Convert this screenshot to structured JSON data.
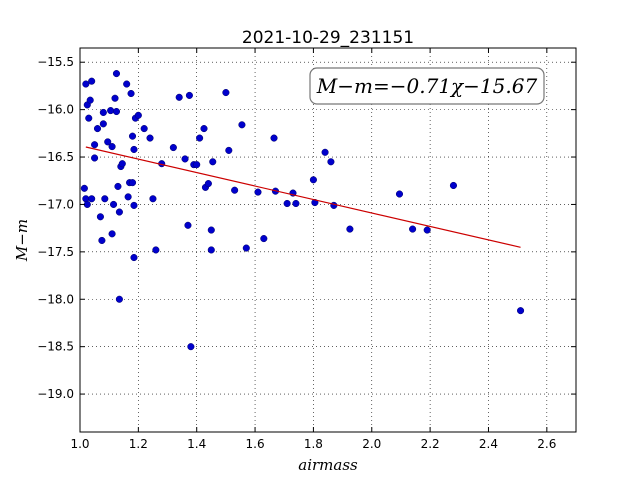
{
  "chart_data": {
    "type": "scatter",
    "title": "2021-10-29_231151",
    "xlabel": "airmass",
    "ylabel": "M−m",
    "xlim": [
      1.0,
      2.7
    ],
    "ylim": [
      -19.4,
      -15.35
    ],
    "y_inverted": true,
    "grid": true,
    "grid_style": "dotted",
    "x_ticks": [
      1.0,
      1.2,
      1.4,
      1.6,
      1.8,
      2.0,
      2.2,
      2.4,
      2.6
    ],
    "x_tick_labels": [
      "1.0",
      "1.2",
      "1.4",
      "1.6",
      "1.8",
      "2.0",
      "2.2",
      "2.4",
      "2.6"
    ],
    "y_ticks": [
      -15.5,
      -16.0,
      -16.5,
      -17.0,
      -17.5,
      -18.0,
      -18.5,
      -19.0
    ],
    "y_tick_labels": [
      "−15.5",
      "−16.0",
      "−16.5",
      "−17.0",
      "−17.5",
      "−18.0",
      "−18.5",
      "−19.0"
    ],
    "annotation": "M−m=−0.71χ−15.67",
    "annotation_position": "top-right",
    "colors": {
      "points": "#0000cc",
      "fit_line": "#cc0000"
    },
    "fit_line": {
      "slope": -0.71,
      "intercept": -15.67,
      "x_range": [
        1.02,
        2.51
      ]
    },
    "series": [
      {
        "points": [
          [
            1.015,
            -16.83
          ],
          [
            1.02,
            -15.73
          ],
          [
            1.02,
            -16.94
          ],
          [
            1.025,
            -15.95
          ],
          [
            1.025,
            -17.0
          ],
          [
            1.03,
            -16.09
          ],
          [
            1.035,
            -15.9
          ],
          [
            1.04,
            -15.7
          ],
          [
            1.04,
            -16.94
          ],
          [
            1.05,
            -16.37
          ],
          [
            1.05,
            -16.51
          ],
          [
            1.06,
            -16.2
          ],
          [
            1.07,
            -17.13
          ],
          [
            1.075,
            -17.38
          ],
          [
            1.08,
            -16.15
          ],
          [
            1.08,
            -16.03
          ],
          [
            1.085,
            -16.94
          ],
          [
            1.095,
            -16.34
          ],
          [
            1.105,
            -16.01
          ],
          [
            1.11,
            -16.39
          ],
          [
            1.11,
            -17.31
          ],
          [
            1.115,
            -17.0
          ],
          [
            1.12,
            -15.88
          ],
          [
            1.125,
            -16.02
          ],
          [
            1.125,
            -15.62
          ],
          [
            1.13,
            -16.81
          ],
          [
            1.135,
            -17.08
          ],
          [
            1.135,
            -18.0
          ],
          [
            1.14,
            -16.6
          ],
          [
            1.145,
            -16.57
          ],
          [
            1.16,
            -15.73
          ],
          [
            1.165,
            -16.92
          ],
          [
            1.17,
            -16.77
          ],
          [
            1.175,
            -15.83
          ],
          [
            1.18,
            -16.77
          ],
          [
            1.18,
            -16.28
          ],
          [
            1.185,
            -16.42
          ],
          [
            1.185,
            -17.01
          ],
          [
            1.185,
            -17.56
          ],
          [
            1.19,
            -16.09
          ],
          [
            1.2,
            -16.06
          ],
          [
            1.22,
            -16.2
          ],
          [
            1.24,
            -16.3
          ],
          [
            1.25,
            -16.94
          ],
          [
            1.26,
            -17.48
          ],
          [
            1.28,
            -16.57
          ],
          [
            1.32,
            -16.4
          ],
          [
            1.34,
            -15.87
          ],
          [
            1.36,
            -16.52
          ],
          [
            1.37,
            -17.22
          ],
          [
            1.375,
            -15.85
          ],
          [
            1.38,
            -18.5
          ],
          [
            1.39,
            -16.58
          ],
          [
            1.4,
            -16.58
          ],
          [
            1.41,
            -16.3
          ],
          [
            1.425,
            -16.2
          ],
          [
            1.43,
            -16.82
          ],
          [
            1.44,
            -16.78
          ],
          [
            1.45,
            -17.48
          ],
          [
            1.45,
            -17.27
          ],
          [
            1.455,
            -16.55
          ],
          [
            1.5,
            -15.82
          ],
          [
            1.51,
            -16.43
          ],
          [
            1.53,
            -16.85
          ],
          [
            1.555,
            -16.16
          ],
          [
            1.57,
            -17.46
          ],
          [
            1.61,
            -16.87
          ],
          [
            1.63,
            -17.36
          ],
          [
            1.665,
            -16.3
          ],
          [
            1.67,
            -16.86
          ],
          [
            1.71,
            -16.99
          ],
          [
            1.73,
            -16.88
          ],
          [
            1.74,
            -16.99
          ],
          [
            1.8,
            -16.74
          ],
          [
            1.805,
            -16.98
          ],
          [
            1.84,
            -16.45
          ],
          [
            1.86,
            -16.55
          ],
          [
            1.87,
            -17.01
          ],
          [
            1.925,
            -17.26
          ],
          [
            2.095,
            -16.89
          ],
          [
            2.14,
            -17.26
          ],
          [
            2.19,
            -17.27
          ],
          [
            2.28,
            -16.8
          ],
          [
            2.51,
            -18.12
          ]
        ]
      }
    ]
  }
}
